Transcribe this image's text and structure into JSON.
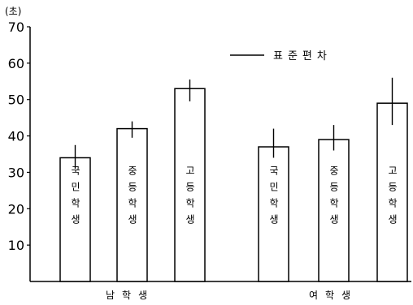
{
  "chart_data": {
    "type": "bar",
    "y_unit_label": "(초)",
    "ylim": [
      0,
      70
    ],
    "yticks": [
      "10",
      "20",
      "30",
      "40",
      "50",
      "60",
      "70"
    ],
    "legend": {
      "label": "표준편차",
      "placement": "top-right"
    },
    "groups": [
      {
        "label": "남학생",
        "bars": [
          {
            "label": "국민학생",
            "value": 34,
            "sd_low": 31,
            "sd_high": 37.5
          },
          {
            "label": "중등학생",
            "value": 42,
            "sd_low": 39.5,
            "sd_high": 44
          },
          {
            "label": "고등학생",
            "value": 53,
            "sd_low": 49.5,
            "sd_high": 55.5
          }
        ]
      },
      {
        "label": "여학생",
        "bars": [
          {
            "label": "국민학생",
            "value": 37,
            "sd_low": 34,
            "sd_high": 42
          },
          {
            "label": "중등학생",
            "value": 39,
            "sd_low": 36,
            "sd_high": 43
          },
          {
            "label": "고등학생",
            "value": 49,
            "sd_low": 43,
            "sd_high": 56
          }
        ]
      }
    ]
  }
}
